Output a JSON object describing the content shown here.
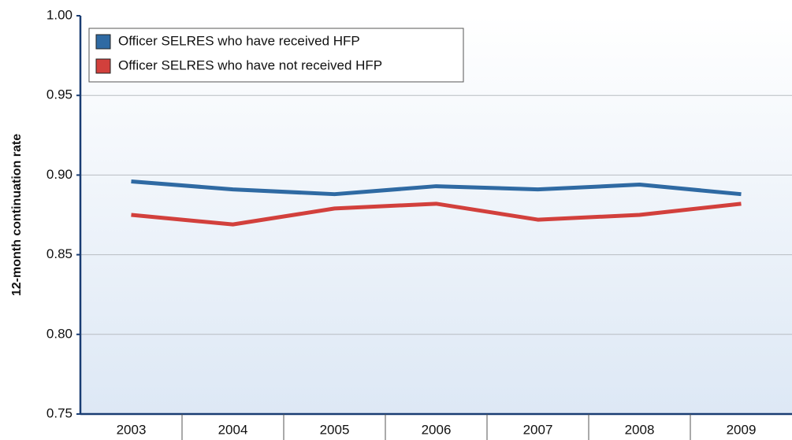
{
  "chart_data": {
    "type": "line",
    "y_label": "12-month continuation rate",
    "categories": [
      "2003",
      "2004",
      "2005",
      "2006",
      "2007",
      "2008",
      "2009"
    ],
    "series": [
      {
        "name": "Officer SELRES who have received HFP",
        "color": "#2f6aa3",
        "values": [
          0.896,
          0.891,
          0.888,
          0.893,
          0.891,
          0.894,
          0.888
        ]
      },
      {
        "name": "Officer SELRES who have not received HFP",
        "color": "#d2403c",
        "values": [
          0.875,
          0.869,
          0.879,
          0.882,
          0.872,
          0.875,
          0.882
        ]
      }
    ],
    "ylim": [
      0.75,
      1.0
    ],
    "yticks": [
      {
        "value": 0.75,
        "label": "0.75"
      },
      {
        "value": 0.8,
        "label": "0.80"
      },
      {
        "value": 0.85,
        "label": "0.85"
      },
      {
        "value": 0.9,
        "label": "0.90"
      },
      {
        "value": 0.95,
        "label": "0.95"
      },
      {
        "value": 1.0,
        "label": "1.00"
      }
    ],
    "grid": true,
    "legend": "top-left"
  }
}
